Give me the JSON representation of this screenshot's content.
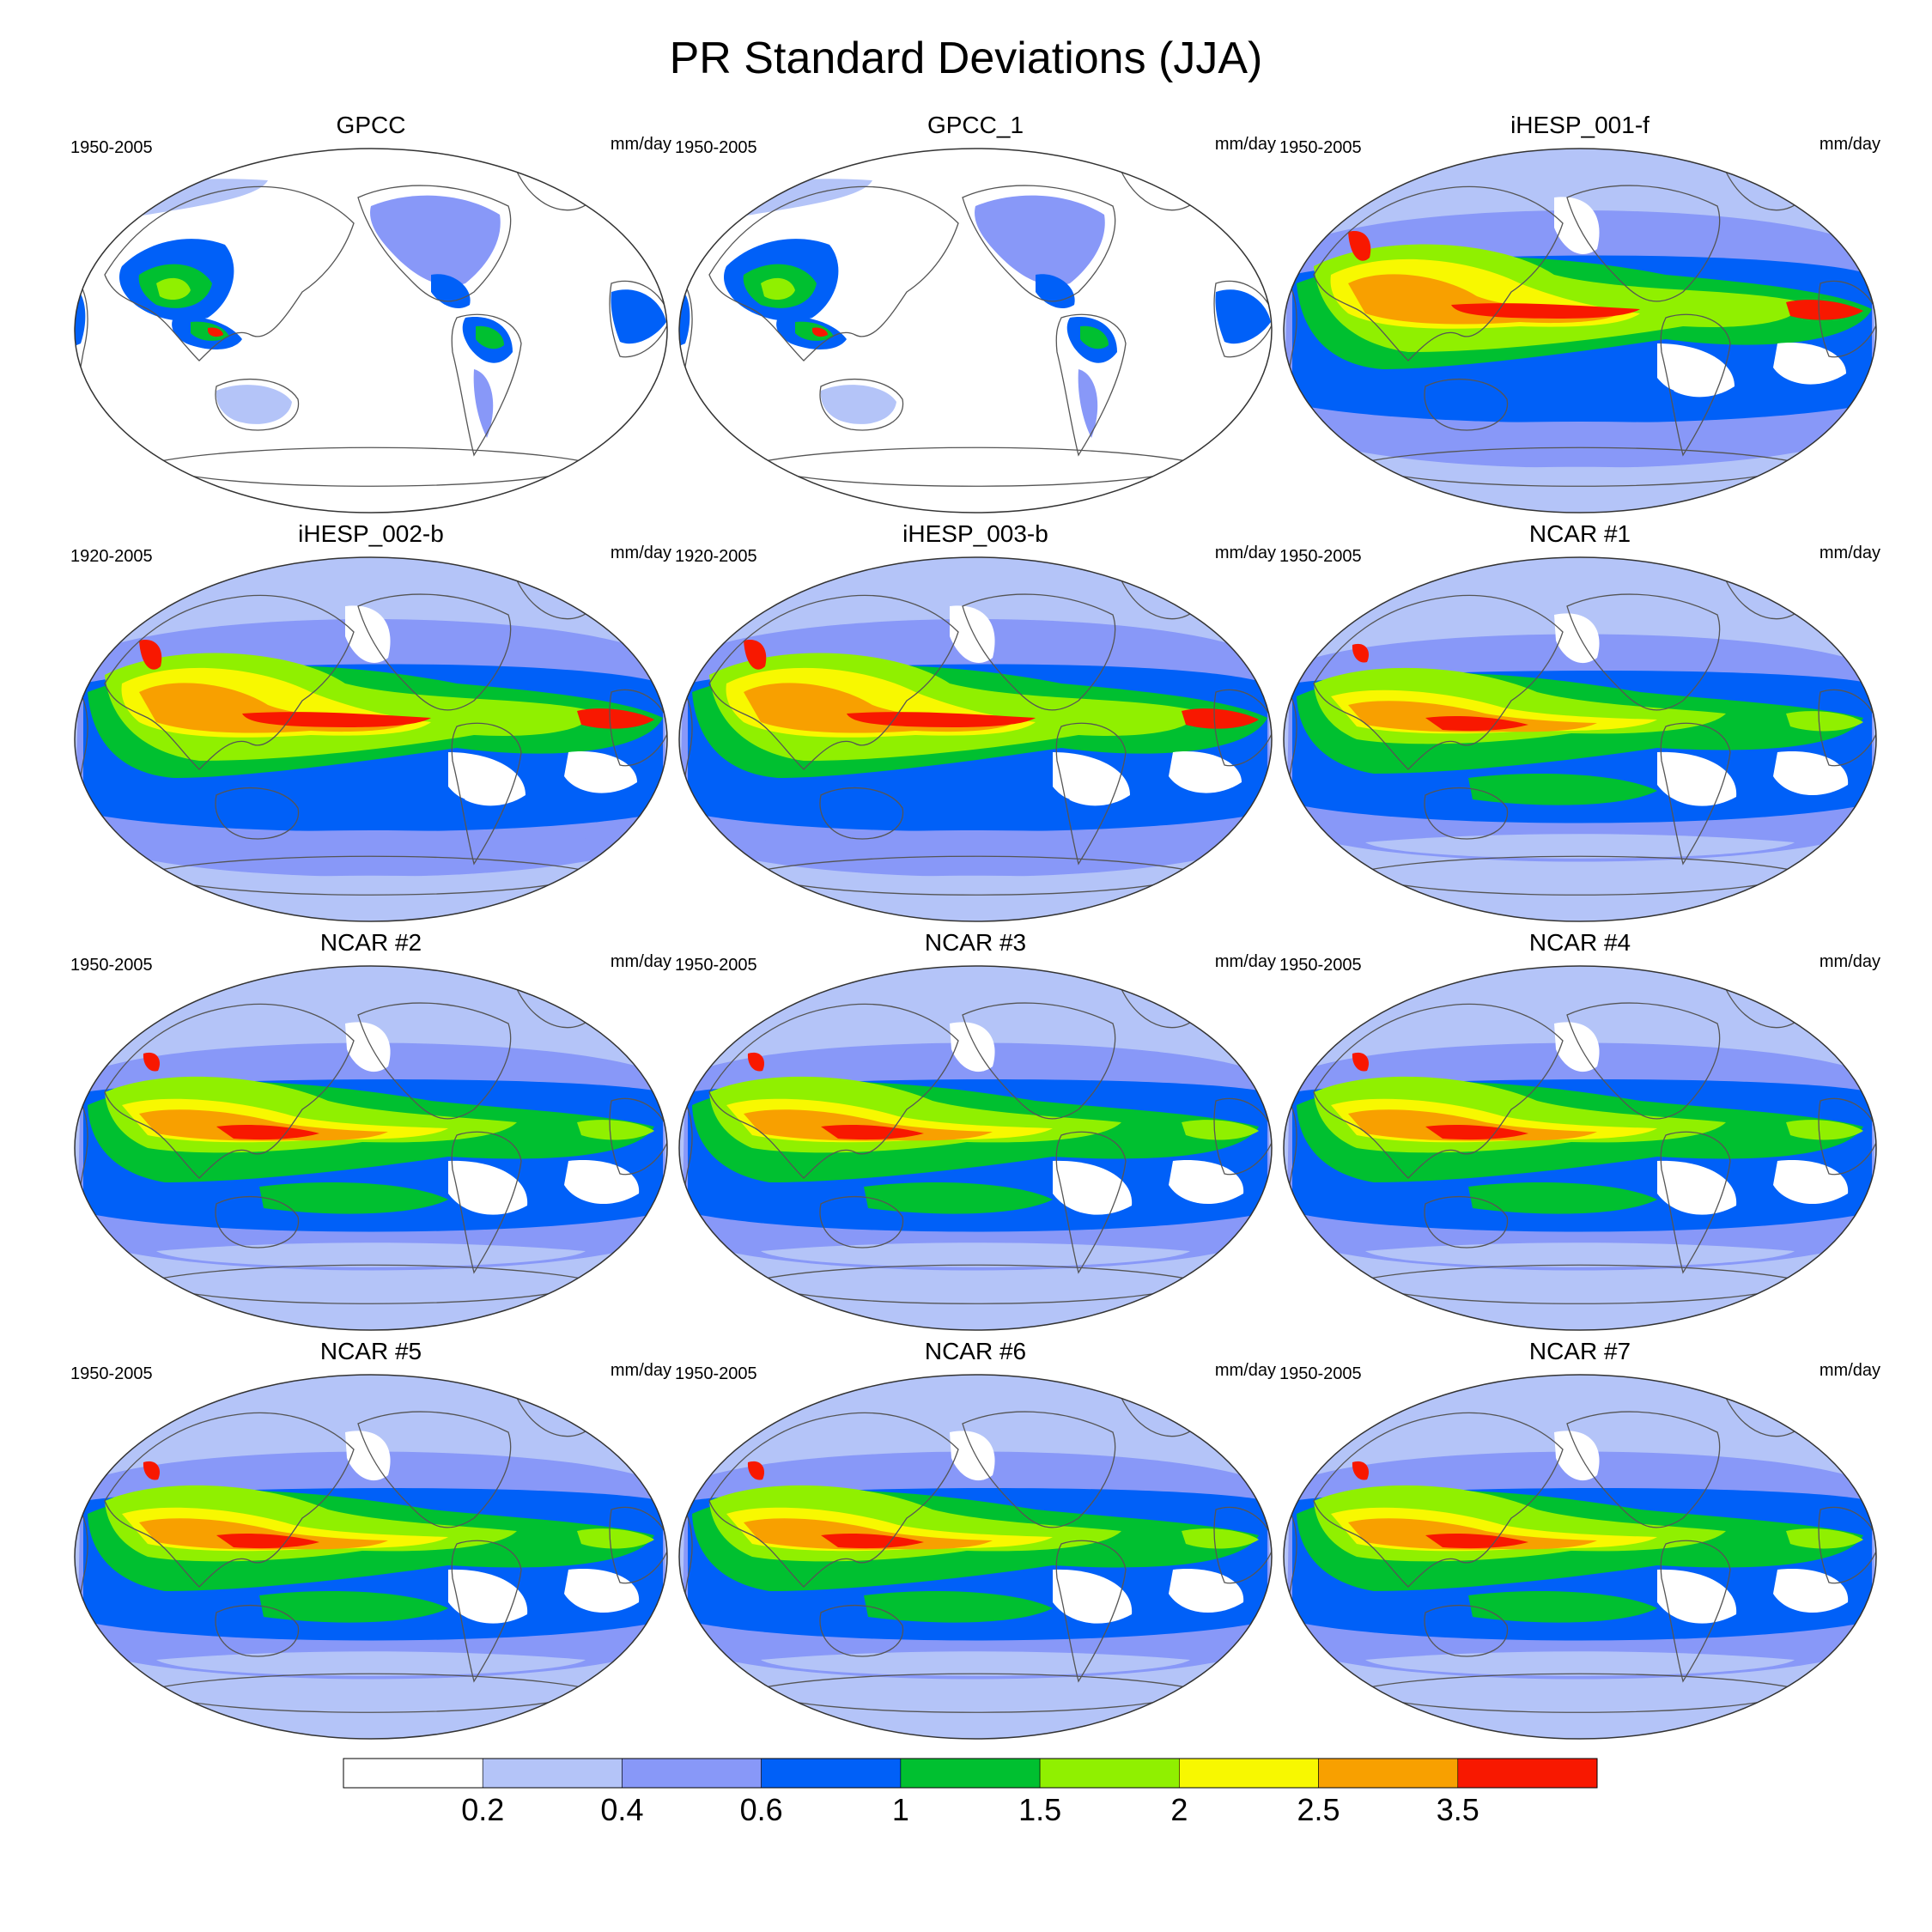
{
  "title": "PR Standard Deviations (JJA)",
  "panels": [
    {
      "title": "GPCC",
      "period": "1950-2005",
      "units": "mm/day",
      "kind": "obs"
    },
    {
      "title": "GPCC_1",
      "period": "1950-2005",
      "units": "mm/day",
      "kind": "obs"
    },
    {
      "title": "iHESP_001-f",
      "period": "1950-2005",
      "units": "mm/day",
      "kind": "ihesp"
    },
    {
      "title": "iHESP_002-b",
      "period": "1920-2005",
      "units": "mm/day",
      "kind": "ihesp"
    },
    {
      "title": "iHESP_003-b",
      "period": "1920-2005",
      "units": "mm/day",
      "kind": "ihesp"
    },
    {
      "title": "NCAR #1",
      "period": "1950-2005",
      "units": "mm/day",
      "kind": "ncar"
    },
    {
      "title": "NCAR #2",
      "period": "1950-2005",
      "units": "mm/day",
      "kind": "ncar"
    },
    {
      "title": "NCAR #3",
      "period": "1950-2005",
      "units": "mm/day",
      "kind": "ncar"
    },
    {
      "title": "NCAR #4",
      "period": "1950-2005",
      "units": "mm/day",
      "kind": "ncar"
    },
    {
      "title": "NCAR #5",
      "period": "1950-2005",
      "units": "mm/day",
      "kind": "ncar"
    },
    {
      "title": "NCAR #6",
      "period": "1950-2005",
      "units": "mm/day",
      "kind": "ncar"
    },
    {
      "title": "NCAR #7",
      "period": "1950-2005",
      "units": "mm/day",
      "kind": "ncar"
    }
  ],
  "colorbar": {
    "labels": [
      "0.2",
      "0.4",
      "0.6",
      "1",
      "1.5",
      "2",
      "2.5",
      "3.5"
    ],
    "colors": [
      "#ffffff",
      "#b4c4f8",
      "#8898f8",
      "#0060f8",
      "#00c030",
      "#90f000",
      "#f8f800",
      "#f8a000",
      "#f81800"
    ]
  }
}
